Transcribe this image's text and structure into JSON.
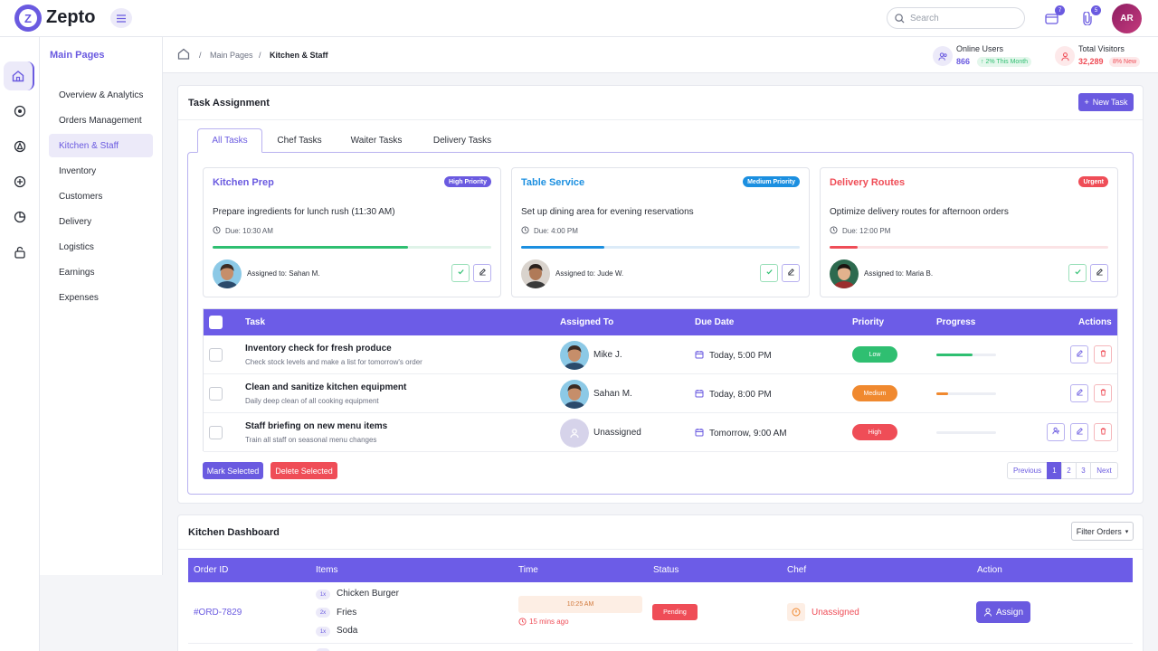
{
  "app": {
    "name": "Zepto",
    "logo_letter": "Z",
    "accent": "#6a5ae0"
  },
  "topbar": {
    "search_placeholder": "Search",
    "messages_count": "7",
    "attachments_count": "5",
    "user_initials": "AR"
  },
  "sidebar": {
    "title": "Main Pages",
    "items": [
      {
        "label": "Overview & Analytics"
      },
      {
        "label": "Orders Management"
      },
      {
        "label": "Kitchen & Staff"
      },
      {
        "label": "Inventory"
      },
      {
        "label": "Customers"
      },
      {
        "label": "Delivery"
      },
      {
        "label": "Logistics"
      },
      {
        "label": "Earnings"
      },
      {
        "label": "Expenses"
      }
    ],
    "active": "Kitchen & Staff"
  },
  "breadcrumb": {
    "parent": "Main Pages",
    "current": "Kitchen & Staff"
  },
  "stats": {
    "online": {
      "label": "Online Users",
      "value": "866",
      "change": "2% This Month"
    },
    "visitors": {
      "label": "Total Visitors",
      "value": "32,289",
      "change": "8% New"
    }
  },
  "task_assignment": {
    "title": "Task Assignment",
    "new_task_label": "New Task",
    "tabs": [
      "All Tasks",
      "Chef Tasks",
      "Waiter Tasks",
      "Delivery Tasks"
    ],
    "active_tab": "All Tasks",
    "cards": [
      {
        "title": "Kitchen Prep",
        "badge": "High Priority",
        "badge_color": "#6a5ae0",
        "title_color": "#6a5ae0",
        "desc": "Prepare ingredients for lunch rush (11:30 AM)",
        "due": "Due: 10:30 AM",
        "progress": 0.7,
        "bar_color": "#2fbf71",
        "track_color": "#dff3e8",
        "assigned": "Assigned to: Sahan M."
      },
      {
        "title": "Table Service",
        "badge": "Medium Priority",
        "badge_color": "#1b8fe0",
        "title_color": "#1b8fe0",
        "desc": "Set up dining area for evening reservations",
        "due": "Due: 4:00 PM",
        "progress": 0.3,
        "bar_color": "#1b8fe0",
        "track_color": "#dcebf8",
        "assigned": "Assigned to: Jude W."
      },
      {
        "title": "Delivery Routes",
        "badge": "Urgent",
        "badge_color": "#ef4d57",
        "title_color": "#ef4d57",
        "desc": "Optimize delivery routes for afternoon orders",
        "due": "Due: 12:00 PM",
        "progress": 0.1,
        "bar_color": "#ef4d57",
        "track_color": "#fbe3e5",
        "assigned": "Assigned to: Maria B."
      }
    ],
    "table": {
      "headers": [
        "Task",
        "Assigned To",
        "Due Date",
        "Priority",
        "Progress",
        "Actions"
      ],
      "rows": [
        {
          "task": "Inventory check for fresh produce",
          "sub": "Check stock levels and make a list for tomorrow's order",
          "assignee": "Mike J.",
          "due": "Today, 5:00 PM",
          "priority": "Low",
          "priority_color": "#2fbf71",
          "progress": 0.6,
          "progress_color": "#2fbf71"
        },
        {
          "task": "Clean and sanitize kitchen equipment",
          "sub": "Daily deep clean of all cooking equipment",
          "assignee": "Sahan M.",
          "due": "Today, 8:00 PM",
          "priority": "Medium",
          "priority_color": "#f0892f",
          "progress": 0.2,
          "progress_color": "#f0892f"
        },
        {
          "task": "Staff briefing on new menu items",
          "sub": "Train all staff on seasonal menu changes",
          "assignee": "Unassigned",
          "due": "Tomorrow, 9:00 AM",
          "priority": "High",
          "priority_color": "#ef4d57",
          "progress": 0.0,
          "progress_color": "#ef4d57"
        }
      ]
    },
    "bulk": {
      "mark": "Mark Selected",
      "delete": "Delete Selected"
    },
    "pagination": {
      "previous": "Previous",
      "pages": [
        "1",
        "2",
        "3"
      ],
      "next": "Next",
      "current": "1"
    }
  },
  "kitchen_dashboard": {
    "title": "Kitchen Dashboard",
    "filter_label": "Filter Orders",
    "headers": [
      "Order ID",
      "Items",
      "Time",
      "Status",
      "Chef",
      "Action"
    ],
    "orders": [
      {
        "id": "#ORD-7829",
        "items": [
          {
            "qty": "1x",
            "name": "Chicken Burger"
          },
          {
            "qty": "2x",
            "name": "Fries"
          },
          {
            "qty": "1x",
            "name": "Soda"
          }
        ],
        "time": "10:25 AM",
        "ago": "15 mins ago",
        "status": "Pending",
        "chef": "Unassigned",
        "action": "Assign"
      }
    ]
  }
}
